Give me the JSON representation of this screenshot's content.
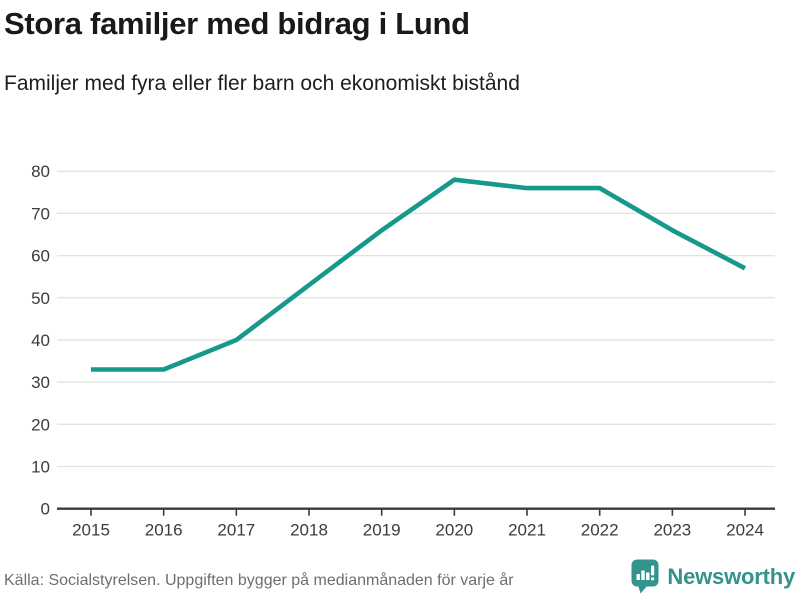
{
  "header": {
    "title": "Stora familjer med bidrag i Lund",
    "subtitle": "Familjer med fyra eller fler barn och ekonomiskt bistånd"
  },
  "chart_data": {
    "type": "line",
    "title": "Stora familjer med bidrag i Lund",
    "subtitle": "Familjer med fyra eller fler barn och ekonomiskt bistånd",
    "x": [
      2015,
      2016,
      2017,
      2018,
      2019,
      2020,
      2021,
      2022,
      2023,
      2024
    ],
    "values": [
      33,
      33,
      40,
      53,
      66,
      78,
      76,
      76,
      66,
      57
    ],
    "xlabel": "",
    "ylabel": "",
    "ylim": [
      0,
      80
    ],
    "yticks": [
      0,
      10,
      20,
      30,
      40,
      50,
      60,
      70,
      80
    ],
    "grid": true,
    "legend": false,
    "line_color": "#16998c",
    "axis_color": "#3a3a3a",
    "grid_color": "#e1e1e1",
    "tick_label_color": "#3c3c3c"
  },
  "footer": {
    "source": "Källa: Socialstyrelsen. Uppgiften bygger på medianmånaden för varje år",
    "brand": "Newsworthy",
    "brand_color": "#33948c"
  }
}
